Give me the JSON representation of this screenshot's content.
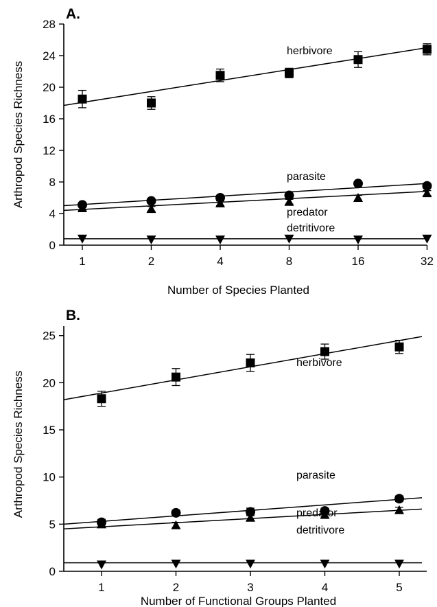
{
  "chart_data": [
    {
      "panel_label": "A.",
      "type": "scatter",
      "xlabel": "Number of Species Planted",
      "ylabel": "Arthropod Species Richness",
      "x_scale": "log2",
      "x": [
        1,
        2,
        4,
        8,
        16,
        32
      ],
      "x_tick_labels": [
        "1",
        "2",
        "4",
        "8",
        "16",
        "32"
      ],
      "xlim": [
        0.85,
        40
      ],
      "ylim": [
        0,
        28
      ],
      "y_ticks": [
        0,
        4,
        8,
        12,
        16,
        20,
        24,
        28
      ],
      "series": [
        {
          "name": "herbivore",
          "marker": "square",
          "y": [
            18.5,
            18.0,
            21.5,
            21.8,
            23.5,
            24.8
          ],
          "err": [
            1.1,
            0.8,
            0.8,
            0.6,
            1.0,
            0.7
          ],
          "fit": [
            17.7,
            25.0
          ]
        },
        {
          "name": "parasite",
          "marker": "circle",
          "y": [
            5.1,
            5.6,
            6.0,
            6.3,
            7.8,
            7.5
          ],
          "err": [
            0.3,
            0.3,
            0.3,
            0.3,
            0.3,
            0.3
          ],
          "fit": [
            5.0,
            7.8
          ]
        },
        {
          "name": "predator",
          "marker": "triangle-up",
          "y": [
            4.7,
            4.6,
            5.3,
            5.5,
            6.0,
            6.6
          ],
          "err": [
            0.3,
            0.3,
            0.3,
            0.3,
            0.3,
            0.3
          ],
          "fit": [
            4.4,
            6.8
          ]
        },
        {
          "name": "detritivore",
          "marker": "triangle-down",
          "y": [
            0.8,
            0.7,
            0.7,
            0.8,
            0.7,
            0.8
          ],
          "err": [
            0.1,
            0.1,
            0.1,
            0.1,
            0.1,
            0.1
          ],
          "fit": [
            0.8,
            0.8
          ]
        }
      ]
    },
    {
      "panel_label": "B.",
      "type": "scatter",
      "xlabel": "Number of Functional Groups Planted",
      "ylabel": "Arthropod Species Richness",
      "x": [
        1,
        2,
        3,
        4,
        5
      ],
      "x_tick_labels": [
        "1",
        "2",
        "3",
        "4",
        "5"
      ],
      "xlim": [
        0.5,
        5.5
      ],
      "ylim": [
        0,
        26
      ],
      "y_ticks": [
        0,
        5,
        10,
        15,
        20,
        25
      ],
      "series": [
        {
          "name": "herbivore",
          "marker": "square",
          "y": [
            18.3,
            20.6,
            22.1,
            23.3,
            23.8
          ],
          "err": [
            0.8,
            0.9,
            0.9,
            0.8,
            0.7
          ],
          "fit": [
            18.2,
            24.9
          ]
        },
        {
          "name": "parasite",
          "marker": "circle",
          "y": [
            5.2,
            6.2,
            6.3,
            6.4,
            7.7
          ],
          "err": [
            0.3,
            0.3,
            0.4,
            0.3,
            0.3
          ],
          "fit": [
            5.0,
            7.8
          ]
        },
        {
          "name": "predator",
          "marker": "triangle-up",
          "y": [
            5.0,
            4.9,
            5.7,
            6.0,
            6.5
          ],
          "err": [
            0.3,
            0.3,
            0.3,
            0.3,
            0.3
          ],
          "fit": [
            4.5,
            6.6
          ]
        },
        {
          "name": "detritivore",
          "marker": "triangle-down",
          "y": [
            0.7,
            0.8,
            0.8,
            0.8,
            0.8
          ],
          "err": [
            0.1,
            0.1,
            0.1,
            0.1,
            0.1
          ],
          "fit": [
            0.9,
            0.9
          ]
        }
      ]
    }
  ]
}
